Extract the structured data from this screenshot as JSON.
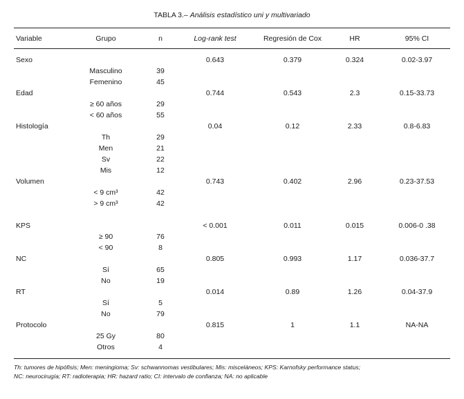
{
  "title": {
    "main": "TABLA 3.–",
    "sub": "Análisis estadístico uni y multivariado"
  },
  "headers": {
    "variable": "Variable",
    "grupo": "Grupo",
    "n": "n",
    "logrank": "Log-rank test",
    "cox": "Regresión de Cox",
    "hr": "HR",
    "ci": "95% CI"
  },
  "rows": [
    {
      "variable": "Sexo",
      "logrank": "0.643",
      "cox": "0.379",
      "hr": "0.324",
      "ci": "0.02-3.97"
    },
    {
      "grupo": "Masculino",
      "n": "39"
    },
    {
      "grupo": "Femenino",
      "n": "45"
    },
    {
      "variable": "Edad",
      "logrank": "0.744",
      "cox": "0.543",
      "hr": "2.3",
      "ci": "0.15-33.73"
    },
    {
      "grupo": "≥ 60 años",
      "n": "29"
    },
    {
      "grupo": "< 60 años",
      "n": "55"
    },
    {
      "variable": "Histología",
      "logrank": "0.04",
      "cox": "0.12",
      "hr": "2.33",
      "ci": "0.8-6.83"
    },
    {
      "grupo": "Th",
      "n": "29"
    },
    {
      "grupo": "Men",
      "n": "21"
    },
    {
      "grupo": "Sv",
      "n": "22"
    },
    {
      "grupo": "Mis",
      "n": "12"
    },
    {
      "variable": "Volumen",
      "logrank": "0.743",
      "cox": "0.402",
      "hr": "2.96",
      "ci": "0.23-37.53"
    },
    {
      "grupo": "< 9 cm³",
      "n": "42"
    },
    {
      "grupo": "> 9 cm³",
      "n": "42"
    },
    {
      "variable": "KPS",
      "logrank": "< 0.001",
      "cox": "0.011",
      "hr": "0.015",
      "ci": "0.006-0 .38"
    },
    {
      "grupo": "≥ 90",
      "n": "76"
    },
    {
      "grupo": "< 90",
      "n": "8"
    },
    {
      "variable": "NC",
      "logrank": "0.805",
      "cox": "0.993",
      "hr": "1.17",
      "ci": "0.036-37.7"
    },
    {
      "grupo": "Sí",
      "n": "65"
    },
    {
      "grupo": "No",
      "n": "19"
    },
    {
      "variable": "RT",
      "logrank": "0.014",
      "cox": "0.89",
      "hr": "1.26",
      "ci": "0.04-37.9"
    },
    {
      "grupo": "Sí",
      "n": "5"
    },
    {
      "grupo": "No",
      "n": "79"
    },
    {
      "variable": "Protocolo",
      "logrank": "0.815",
      "cox": "1",
      "hr": "1.1",
      "ci": "NA-NA"
    },
    {
      "grupo": "25 Gy",
      "n": "80"
    },
    {
      "grupo": "Otros",
      "n": "4"
    }
  ],
  "footnote": {
    "line1": "Th: tumores de hipófisis; Men: meningioma; Sv: schwannomas vestibulares; Mis: misceláneos; KPS: Karnofsky performance status;",
    "line2": "NC: neurocirugía; RT: radioterapia; HR: hazard ratio; CI: intervalo de confianza; NA: no aplicable"
  }
}
